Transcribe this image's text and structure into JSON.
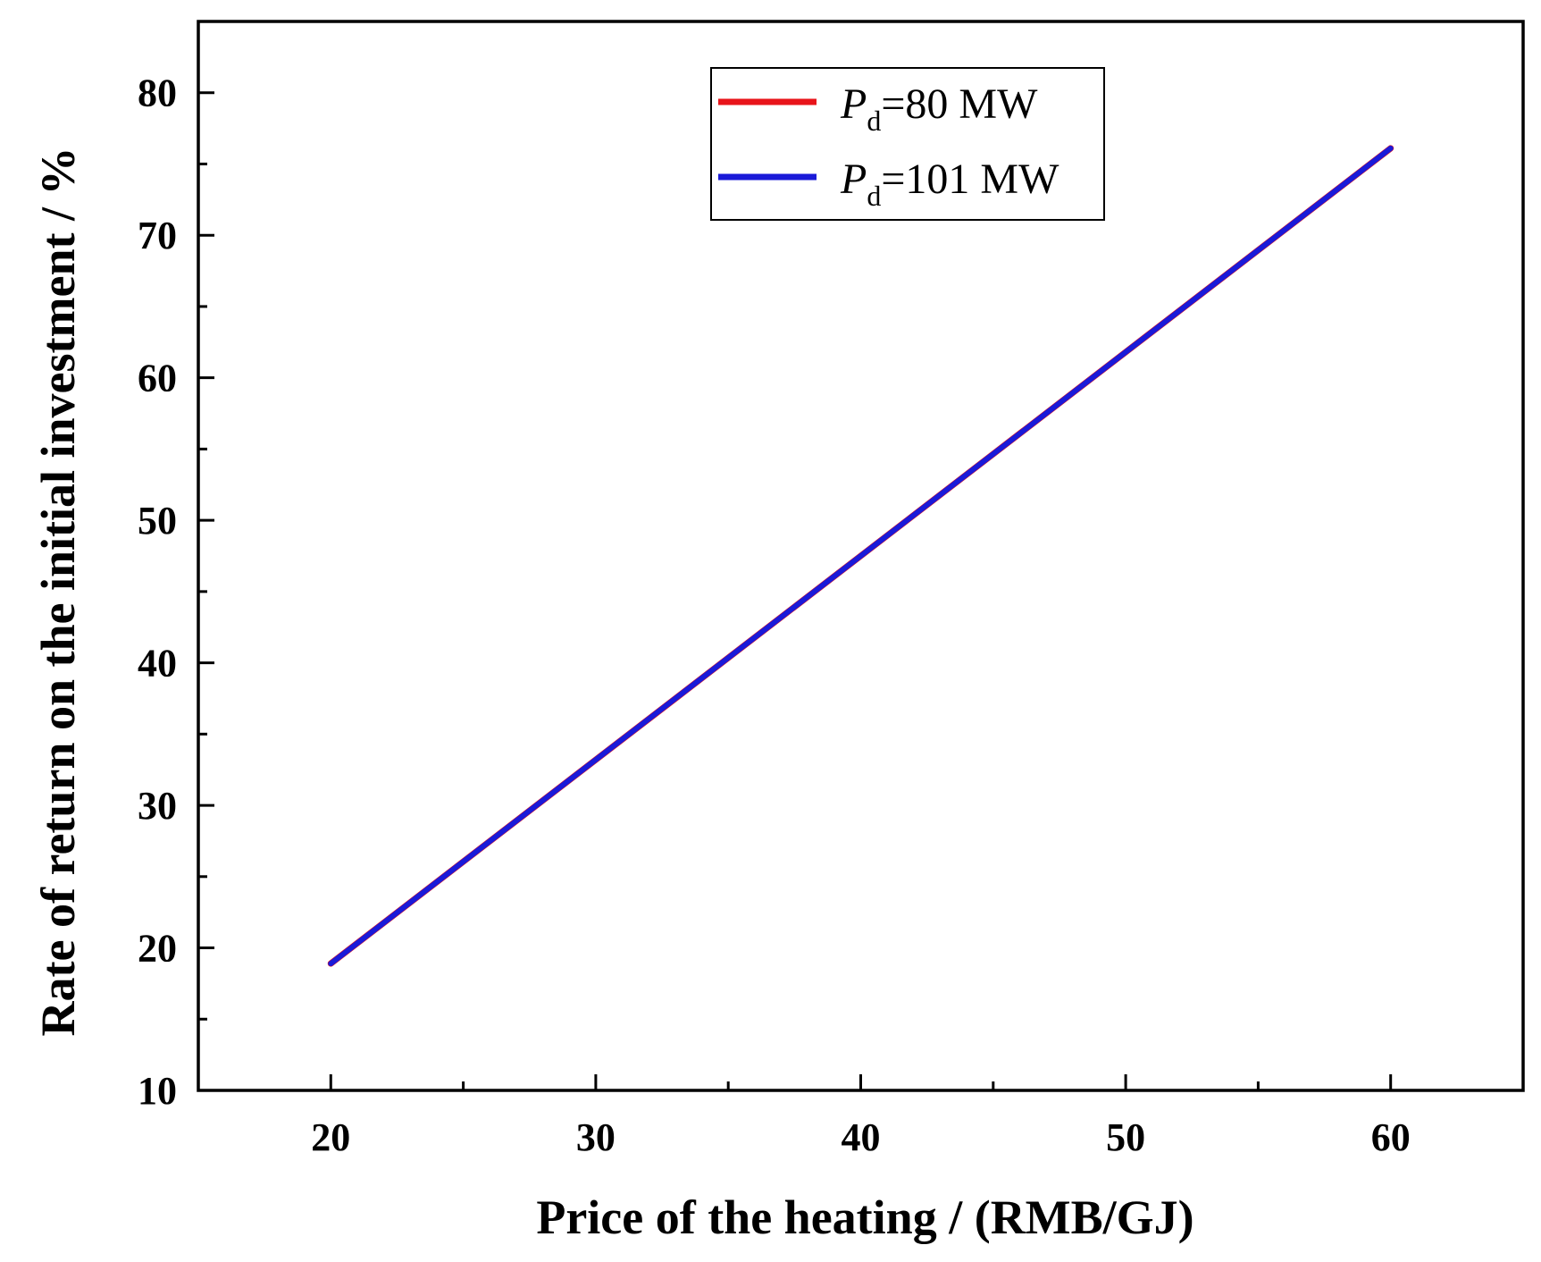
{
  "chart_data": {
    "type": "line",
    "xlabel": "Price of the heating / (RMB/GJ)",
    "ylabel": "Rate of return on the initial investment / %",
    "xlim": [
      15,
      65
    ],
    "ylim": [
      10,
      85
    ],
    "xticks": [
      20,
      30,
      40,
      50,
      60
    ],
    "yticks": [
      10,
      20,
      30,
      40,
      50,
      60,
      70,
      80
    ],
    "x_minor_step": 5,
    "y_minor_step": 5,
    "grid": false,
    "legend_position": "top-center",
    "series": [
      {
        "name": "Pd=80 MW",
        "label_main": "P",
        "label_sub": "d",
        "label_rest": "=80 MW",
        "color": "#e8141a",
        "x": [
          20,
          60
        ],
        "y": [
          18.9,
          76.1
        ]
      },
      {
        "name": "Pd=101 MW",
        "label_main": "P",
        "label_sub": "d",
        "label_rest": "=101 MW",
        "color": "#1a1ad8",
        "x": [
          20,
          60
        ],
        "y": [
          18.9,
          76.1
        ]
      }
    ]
  }
}
